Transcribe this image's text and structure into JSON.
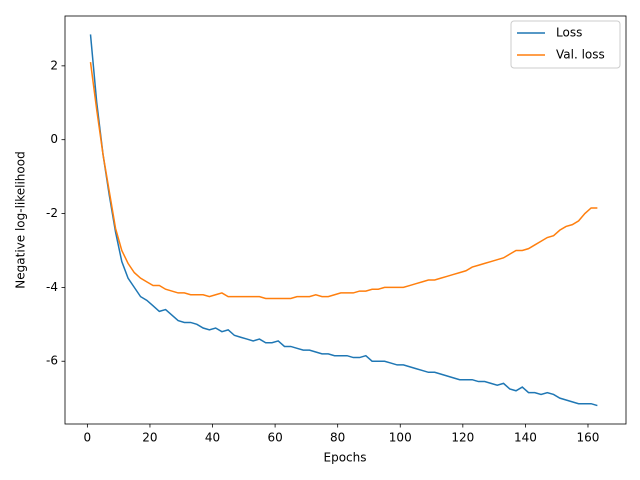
{
  "chart_data": {
    "type": "line",
    "xlabel": "Epochs",
    "ylabel": "Negative log-likelihood",
    "x": [
      1,
      3,
      5,
      7,
      9,
      11,
      13,
      15,
      17,
      19,
      21,
      23,
      25,
      27,
      29,
      31,
      33,
      35,
      37,
      39,
      41,
      43,
      45,
      47,
      49,
      51,
      53,
      55,
      57,
      59,
      61,
      63,
      65,
      67,
      69,
      71,
      73,
      75,
      77,
      79,
      81,
      83,
      85,
      87,
      89,
      91,
      93,
      95,
      97,
      99,
      101,
      103,
      105,
      107,
      109,
      111,
      113,
      115,
      117,
      119,
      121,
      123,
      125,
      127,
      129,
      131,
      133,
      135,
      137,
      139,
      141,
      143,
      145,
      147,
      149,
      151,
      153,
      155,
      157,
      159,
      161,
      163
    ],
    "series": [
      {
        "name": "Loss",
        "color": "#1f77b4",
        "values": [
          2.85,
          1.0,
          -0.4,
          -1.5,
          -2.5,
          -3.3,
          -3.75,
          -4.0,
          -4.25,
          -4.35,
          -4.5,
          -4.65,
          -4.6,
          -4.75,
          -4.9,
          -4.95,
          -4.95,
          -5.0,
          -5.1,
          -5.15,
          -5.1,
          -5.2,
          -5.15,
          -5.3,
          -5.35,
          -5.4,
          -5.45,
          -5.4,
          -5.5,
          -5.5,
          -5.45,
          -5.6,
          -5.6,
          -5.65,
          -5.7,
          -5.7,
          -5.75,
          -5.8,
          -5.8,
          -5.85,
          -5.85,
          -5.85,
          -5.9,
          -5.9,
          -5.85,
          -6.0,
          -6.0,
          -6.0,
          -6.05,
          -6.1,
          -6.1,
          -6.15,
          -6.2,
          -6.25,
          -6.3,
          -6.3,
          -6.35,
          -6.4,
          -6.45,
          -6.5,
          -6.5,
          -6.5,
          -6.55,
          -6.55,
          -6.6,
          -6.65,
          -6.6,
          -6.75,
          -6.8,
          -6.7,
          -6.85,
          -6.85,
          -6.9,
          -6.85,
          -6.9,
          -7.0,
          -7.05,
          -7.1,
          -7.15,
          -7.15,
          -7.15,
          -7.2
        ]
      },
      {
        "name": "Val. loss",
        "color": "#ff7f0e",
        "values": [
          2.1,
          0.8,
          -0.4,
          -1.4,
          -2.4,
          -3.0,
          -3.35,
          -3.6,
          -3.75,
          -3.85,
          -3.95,
          -3.95,
          -4.05,
          -4.1,
          -4.15,
          -4.15,
          -4.2,
          -4.2,
          -4.2,
          -4.25,
          -4.2,
          -4.15,
          -4.25,
          -4.25,
          -4.25,
          -4.25,
          -4.25,
          -4.25,
          -4.3,
          -4.3,
          -4.3,
          -4.3,
          -4.3,
          -4.25,
          -4.25,
          -4.25,
          -4.2,
          -4.25,
          -4.25,
          -4.2,
          -4.15,
          -4.15,
          -4.15,
          -4.1,
          -4.1,
          -4.05,
          -4.05,
          -4.0,
          -4.0,
          -4.0,
          -4.0,
          -3.95,
          -3.9,
          -3.85,
          -3.8,
          -3.8,
          -3.75,
          -3.7,
          -3.65,
          -3.6,
          -3.55,
          -3.45,
          -3.4,
          -3.35,
          -3.3,
          -3.25,
          -3.2,
          -3.1,
          -3.0,
          -3.0,
          -2.95,
          -2.85,
          -2.75,
          -2.65,
          -2.6,
          -2.45,
          -2.35,
          -2.3,
          -2.2,
          -2.0,
          -1.85,
          -1.85
        ]
      }
    ],
    "xlim": [
      -7.15,
      172.15
    ],
    "ylim": [
      -7.7,
      3.35
    ],
    "xticks": [
      0,
      20,
      40,
      60,
      80,
      100,
      120,
      140,
      160
    ],
    "yticks": [
      -6,
      -4,
      -2,
      0,
      2
    ],
    "legend": "upper right",
    "grid": false
  }
}
